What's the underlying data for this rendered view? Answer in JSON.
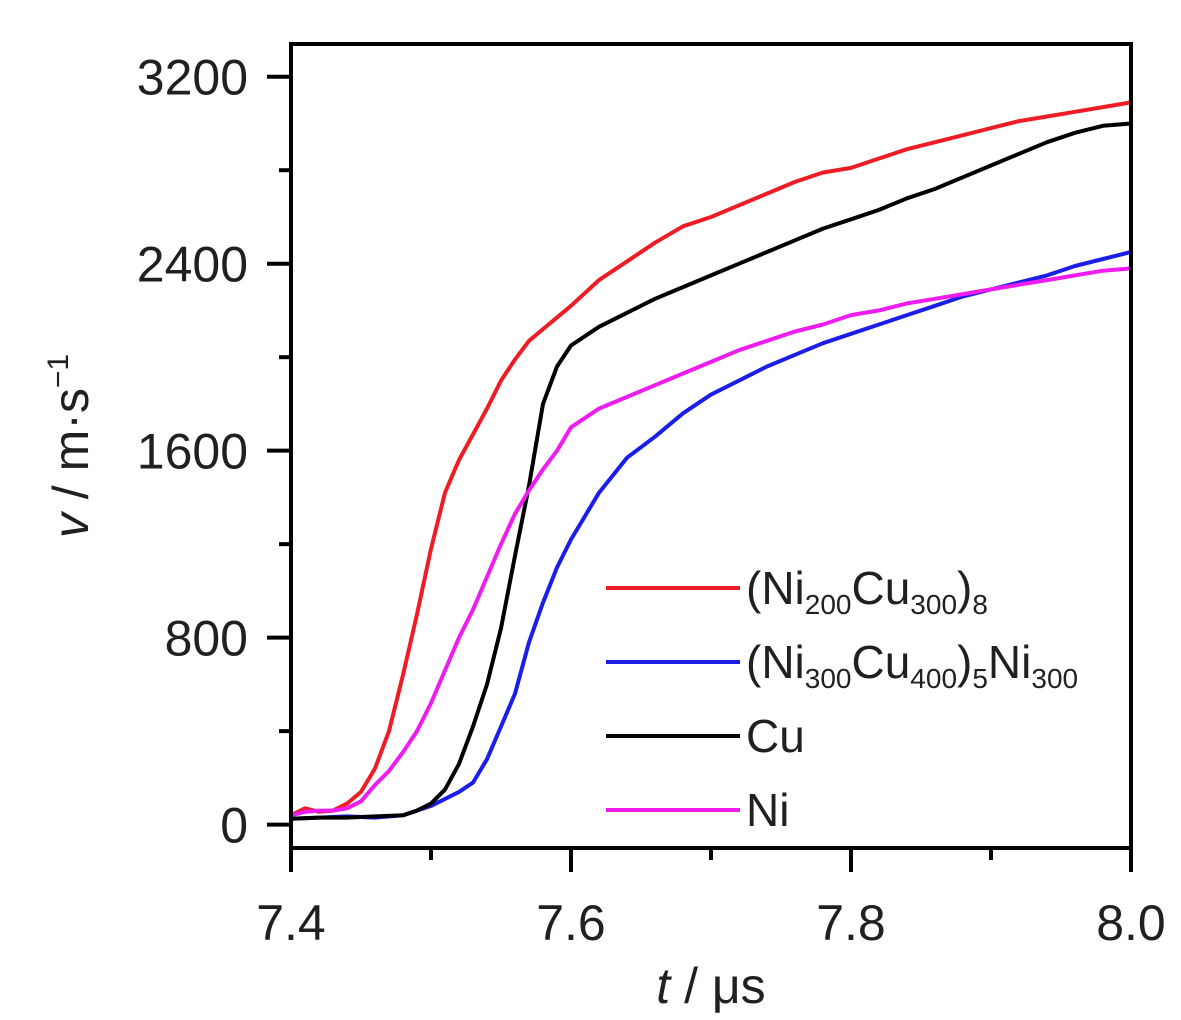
{
  "chart_data": {
    "type": "line",
    "title": "",
    "xlabel": {
      "var": "t",
      "unit": " / μs"
    },
    "ylabel": {
      "var": "v",
      "unit": " / m·s",
      "sup": "−1"
    },
    "xlim": [
      7.4,
      8.0
    ],
    "ylim": [
      -100,
      3340
    ],
    "xticks": [
      "7.4",
      "7.6",
      "7.8",
      "8.0"
    ],
    "yticks": [
      "0",
      "800",
      "1600",
      "2400",
      "3200"
    ],
    "legend_position": "bottom-right",
    "grid": false,
    "series": [
      {
        "name": "(Ni200Cu300)8",
        "legend_parts": [
          [
            "(Ni",
            ""
          ],
          [
            "200",
            "sub"
          ],
          [
            "Cu",
            ""
          ],
          [
            "300",
            "sub"
          ],
          [
            ")",
            ""
          ],
          [
            "8",
            "sub"
          ]
        ],
        "color": "#ee1c25",
        "x": [
          7.4,
          7.41,
          7.42,
          7.43,
          7.44,
          7.45,
          7.46,
          7.47,
          7.48,
          7.49,
          7.5,
          7.51,
          7.52,
          7.53,
          7.54,
          7.55,
          7.56,
          7.57,
          7.58,
          7.6,
          7.62,
          7.64,
          7.66,
          7.68,
          7.7,
          7.72,
          7.74,
          7.76,
          7.78,
          7.8,
          7.82,
          7.84,
          7.86,
          7.88,
          7.9,
          7.92,
          7.94,
          7.96,
          7.98,
          8.0
        ],
        "y": [
          40,
          70,
          55,
          60,
          90,
          140,
          240,
          400,
          640,
          900,
          1180,
          1420,
          1560,
          1670,
          1780,
          1900,
          1990,
          2070,
          2120,
          2220,
          2330,
          2410,
          2490,
          2560,
          2600,
          2650,
          2700,
          2750,
          2790,
          2810,
          2850,
          2890,
          2920,
          2950,
          2980,
          3010,
          3030,
          3050,
          3070,
          3090
        ]
      },
      {
        "name": "(Ni300Cu400)5Ni300",
        "legend_parts": [
          [
            "(Ni",
            ""
          ],
          [
            "300",
            "sub"
          ],
          [
            "Cu",
            ""
          ],
          [
            "400",
            "sub"
          ],
          [
            ")",
            ""
          ],
          [
            "5",
            "sub"
          ],
          [
            "Ni",
            ""
          ],
          [
            "300",
            "sub"
          ]
        ],
        "color": "#1b1ee8",
        "x": [
          7.4,
          7.42,
          7.44,
          7.46,
          7.48,
          7.5,
          7.51,
          7.52,
          7.53,
          7.54,
          7.55,
          7.56,
          7.57,
          7.58,
          7.59,
          7.6,
          7.62,
          7.64,
          7.66,
          7.68,
          7.7,
          7.72,
          7.74,
          7.76,
          7.78,
          7.8,
          7.82,
          7.84,
          7.86,
          7.88,
          7.9,
          7.92,
          7.94,
          7.96,
          7.98,
          8.0
        ],
        "y": [
          25,
          30,
          35,
          30,
          40,
          80,
          110,
          140,
          180,
          280,
          420,
          560,
          780,
          950,
          1100,
          1220,
          1420,
          1570,
          1660,
          1760,
          1840,
          1900,
          1960,
          2010,
          2060,
          2100,
          2140,
          2180,
          2220,
          2260,
          2290,
          2320,
          2350,
          2390,
          2420,
          2450
        ]
      },
      {
        "name": "Cu",
        "legend_parts": [
          [
            "Cu",
            ""
          ]
        ],
        "color": "#000000",
        "x": [
          7.4,
          7.42,
          7.44,
          7.46,
          7.48,
          7.49,
          7.5,
          7.51,
          7.52,
          7.53,
          7.54,
          7.55,
          7.56,
          7.57,
          7.58,
          7.59,
          7.6,
          7.62,
          7.64,
          7.66,
          7.68,
          7.7,
          7.72,
          7.74,
          7.76,
          7.78,
          7.8,
          7.82,
          7.84,
          7.86,
          7.88,
          7.9,
          7.92,
          7.94,
          7.96,
          7.98,
          8.0
        ],
        "y": [
          25,
          30,
          30,
          35,
          40,
          60,
          90,
          150,
          260,
          420,
          600,
          840,
          1150,
          1450,
          1800,
          1960,
          2050,
          2130,
          2190,
          2250,
          2300,
          2350,
          2400,
          2450,
          2500,
          2550,
          2590,
          2630,
          2680,
          2720,
          2770,
          2820,
          2870,
          2920,
          2960,
          2990,
          3000
        ]
      },
      {
        "name": "Ni",
        "legend_parts": [
          [
            "Ni",
            ""
          ]
        ],
        "color": "#ee1cee",
        "x": [
          7.4,
          7.41,
          7.42,
          7.43,
          7.44,
          7.45,
          7.46,
          7.47,
          7.48,
          7.49,
          7.5,
          7.51,
          7.52,
          7.53,
          7.54,
          7.55,
          7.56,
          7.57,
          7.58,
          7.59,
          7.6,
          7.62,
          7.64,
          7.66,
          7.68,
          7.7,
          7.72,
          7.74,
          7.76,
          7.78,
          7.8,
          7.82,
          7.84,
          7.86,
          7.88,
          7.9,
          7.92,
          7.94,
          7.96,
          7.98,
          8.0
        ],
        "y": [
          40,
          55,
          60,
          60,
          70,
          100,
          170,
          230,
          310,
          400,
          520,
          660,
          800,
          920,
          1060,
          1200,
          1330,
          1430,
          1520,
          1600,
          1700,
          1780,
          1830,
          1880,
          1930,
          1980,
          2030,
          2070,
          2110,
          2140,
          2180,
          2200,
          2230,
          2250,
          2270,
          2290,
          2310,
          2330,
          2350,
          2370,
          2380
        ]
      }
    ]
  }
}
